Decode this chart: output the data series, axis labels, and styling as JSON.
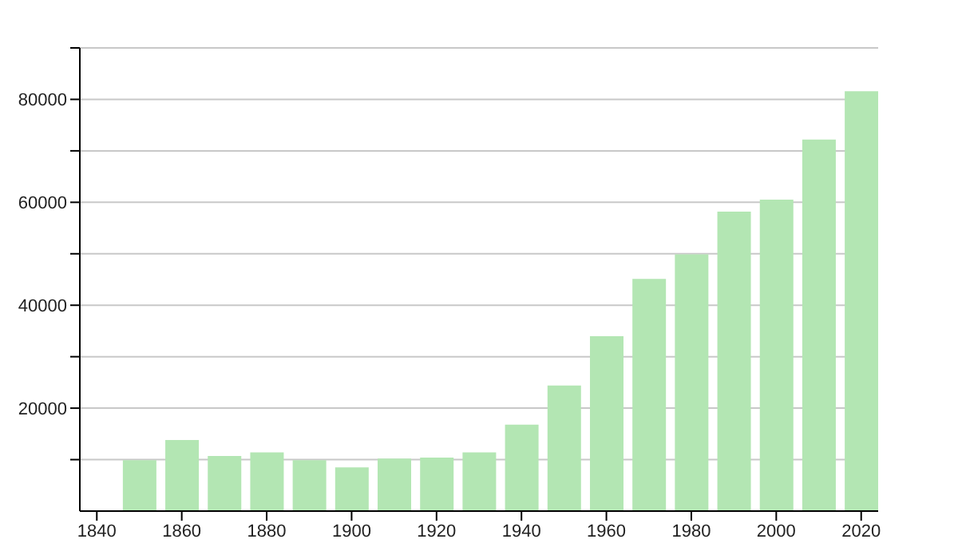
{
  "chart_data": {
    "type": "bar",
    "x": [
      1850,
      1860,
      1870,
      1880,
      1890,
      1900,
      1910,
      1920,
      1930,
      1940,
      1950,
      1960,
      1970,
      1980,
      1990,
      2000,
      2010,
      2020
    ],
    "values": [
      9900,
      13800,
      10700,
      11400,
      9900,
      8500,
      10200,
      10400,
      11400,
      16800,
      24400,
      34000,
      45100,
      49900,
      58200,
      60500,
      72200,
      81600
    ],
    "color": "#b3e6b3",
    "xlim": [
      1836,
      2024
    ],
    "xticks": [
      1840,
      1860,
      1880,
      1900,
      1920,
      1940,
      1960,
      1980,
      2000,
      2020
    ],
    "ylim": [
      0,
      90000
    ],
    "yticks": [
      {
        "value": 10000,
        "label": null
      },
      20000,
      {
        "value": 30000,
        "label": null
      },
      40000,
      {
        "value": 50000,
        "label": null
      },
      60000,
      {
        "value": 70000,
        "label": null
      },
      80000,
      {
        "value": 90000,
        "label": null
      }
    ],
    "grid": "y"
  }
}
